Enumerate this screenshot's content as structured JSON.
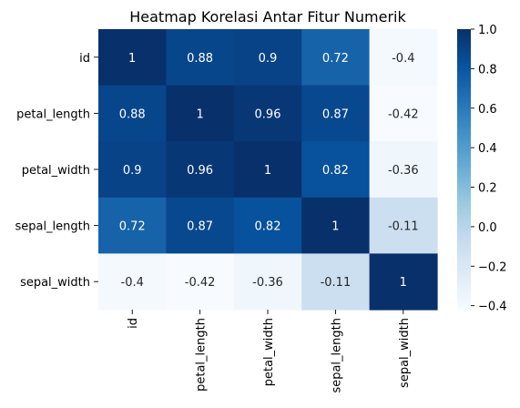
{
  "chart_data": {
    "type": "heatmap",
    "title": "Heatmap Korelasi Antar Fitur Numerik",
    "rows": [
      "id",
      "petal_length",
      "petal_width",
      "sepal_length",
      "sepal_width"
    ],
    "columns": [
      "id",
      "petal_length",
      "petal_width",
      "sepal_length",
      "sepal_width"
    ],
    "values": [
      [
        1,
        0.88,
        0.9,
        0.72,
        -0.4
      ],
      [
        0.88,
        1,
        0.96,
        0.87,
        -0.42
      ],
      [
        0.9,
        0.96,
        1,
        0.82,
        -0.36
      ],
      [
        0.72,
        0.87,
        0.82,
        1,
        -0.11
      ],
      [
        -0.4,
        -0.42,
        -0.36,
        -0.11,
        1
      ]
    ],
    "annotations": [
      [
        "1",
        "0.88",
        "0.9",
        "0.72",
        "-0.4"
      ],
      [
        "0.88",
        "1",
        "0.96",
        "0.87",
        "-0.42"
      ],
      [
        "0.9",
        "0.96",
        "1",
        "0.82",
        "-0.36"
      ],
      [
        "0.72",
        "0.87",
        "0.82",
        "1",
        "-0.11"
      ],
      [
        "-0.4",
        "-0.42",
        "-0.36",
        "-0.11",
        "1"
      ]
    ],
    "colormap": "Blues",
    "vmin": -0.42,
    "vmax": 1.0,
    "colorbar_ticks": [
      1.0,
      0.8,
      0.6,
      0.4,
      0.2,
      0.0,
      -0.2,
      -0.4
    ],
    "colorbar_tick_labels": [
      "1.0",
      "0.8",
      "0.6",
      "0.4",
      "0.2",
      "0.0",
      "−0.2",
      "−0.4"
    ],
    "colorbar_position": "right"
  }
}
